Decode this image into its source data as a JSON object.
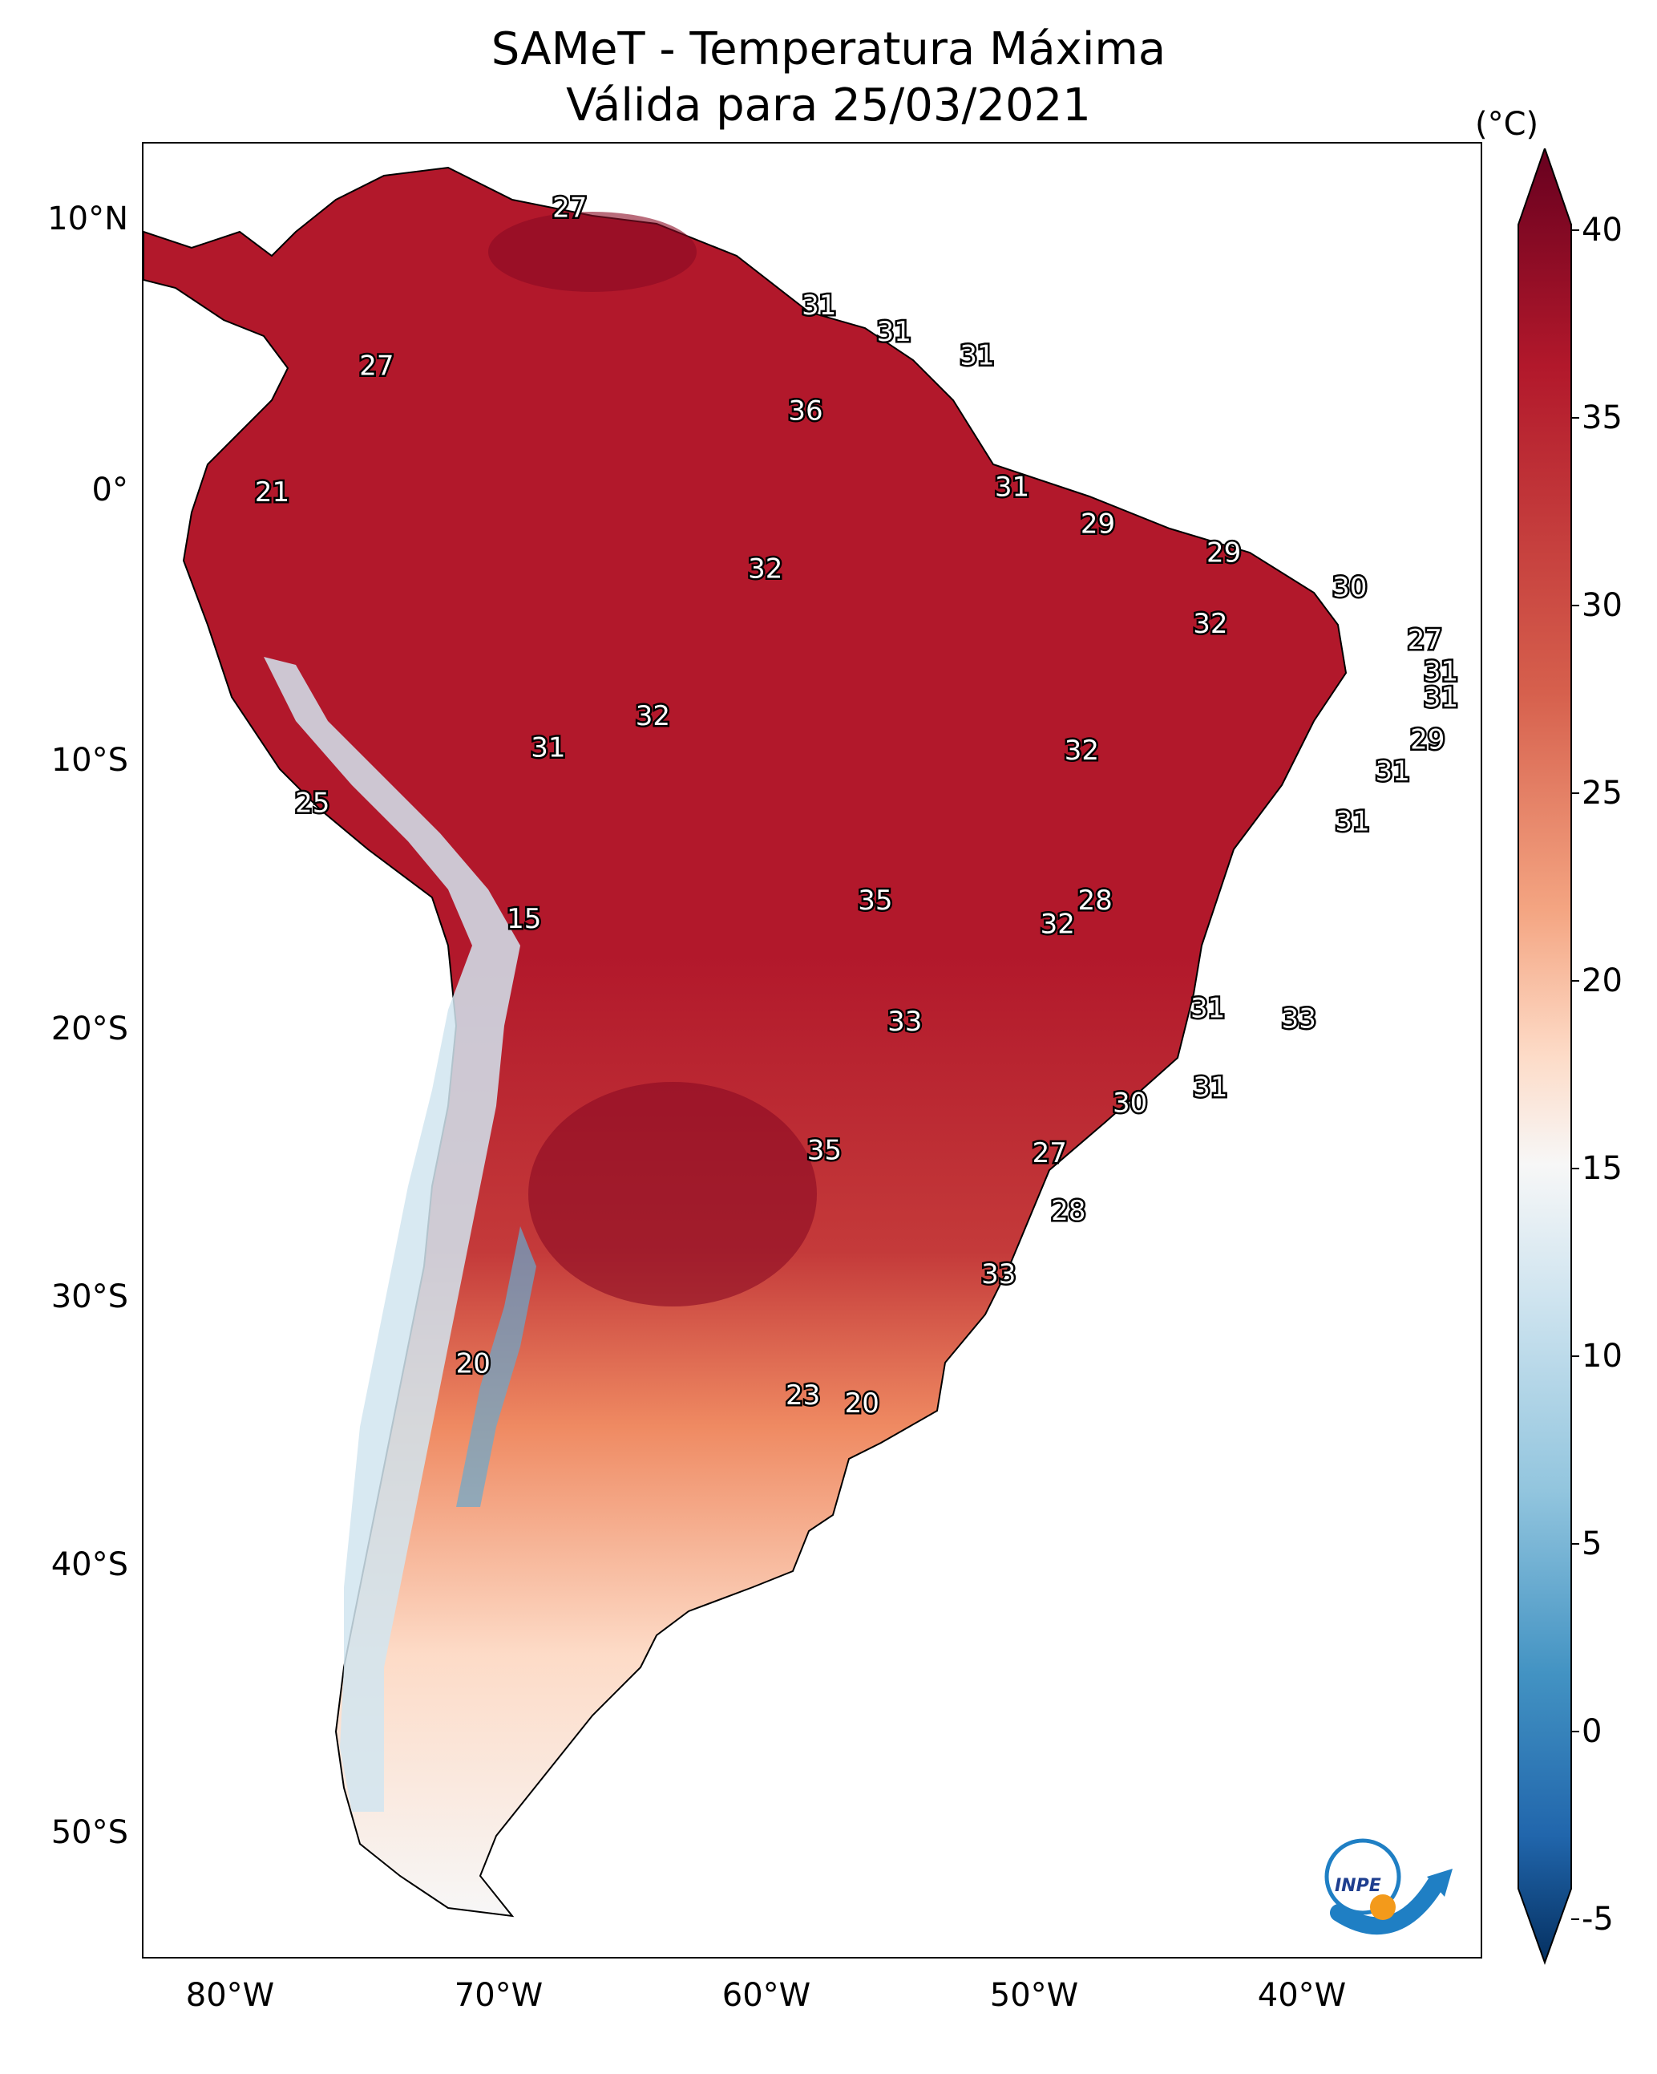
{
  "title": {
    "line1": "SAMeT - Temperatura Máxima",
    "line2": "Válida para 25/03/2021"
  },
  "map": {
    "variable": "Temperatura Máxima",
    "lon_range": [
      -83,
      -33
    ],
    "lat_range": [
      13,
      -56
    ],
    "lat_ticks": [
      {
        "value": 10,
        "label": "10°N"
      },
      {
        "value": 0,
        "label": "0°"
      },
      {
        "value": -10,
        "label": "10°S"
      },
      {
        "value": -20,
        "label": "20°S"
      },
      {
        "value": -30,
        "label": "30°S"
      },
      {
        "value": -40,
        "label": "40°S"
      },
      {
        "value": -50,
        "label": "50°S"
      }
    ],
    "lon_ticks": [
      {
        "value": -80,
        "label": "80°W"
      },
      {
        "value": -70,
        "label": "70°W"
      },
      {
        "value": -60,
        "label": "60°W"
      },
      {
        "value": -50,
        "label": "50°W"
      },
      {
        "value": -40,
        "label": "40°W"
      }
    ],
    "point_values": [
      {
        "lon": -67.1,
        "lat": 10.5,
        "value": "27"
      },
      {
        "lon": -74.3,
        "lat": 4.5,
        "value": "27"
      },
      {
        "lon": -57.8,
        "lat": 6.8,
        "value": "31"
      },
      {
        "lon": -55.0,
        "lat": 5.8,
        "value": "31"
      },
      {
        "lon": -51.9,
        "lat": 4.9,
        "value": "31"
      },
      {
        "lon": -58.3,
        "lat": 2.8,
        "value": "36"
      },
      {
        "lon": -78.2,
        "lat": -0.3,
        "value": "21"
      },
      {
        "lon": -50.6,
        "lat": -0.1,
        "value": "31"
      },
      {
        "lon": -47.4,
        "lat": -1.5,
        "value": "29"
      },
      {
        "lon": -42.7,
        "lat": -2.6,
        "value": "29"
      },
      {
        "lon": -59.8,
        "lat": -3.2,
        "value": "32"
      },
      {
        "lon": -38.0,
        "lat": -3.9,
        "value": "30"
      },
      {
        "lon": -43.2,
        "lat": -5.3,
        "value": "32"
      },
      {
        "lon": -35.2,
        "lat": -5.9,
        "value": "27"
      },
      {
        "lon": -34.6,
        "lat": -7.1,
        "value": "31"
      },
      {
        "lon": -34.6,
        "lat": -8.1,
        "value": "31"
      },
      {
        "lon": -64.0,
        "lat": -8.8,
        "value": "32"
      },
      {
        "lon": -67.9,
        "lat": -10.0,
        "value": "31"
      },
      {
        "lon": -48.0,
        "lat": -10.1,
        "value": "32"
      },
      {
        "lon": -35.1,
        "lat": -9.7,
        "value": "29"
      },
      {
        "lon": -36.4,
        "lat": -10.9,
        "value": "31"
      },
      {
        "lon": -76.7,
        "lat": -12.1,
        "value": "25"
      },
      {
        "lon": -37.9,
        "lat": -12.8,
        "value": "31"
      },
      {
        "lon": -55.7,
        "lat": -15.8,
        "value": "35"
      },
      {
        "lon": -47.5,
        "lat": -15.8,
        "value": "28"
      },
      {
        "lon": -48.9,
        "lat": -16.7,
        "value": "32"
      },
      {
        "lon": -68.8,
        "lat": -16.5,
        "value": "15"
      },
      {
        "lon": -43.3,
        "lat": -19.9,
        "value": "31"
      },
      {
        "lon": -54.6,
        "lat": -20.4,
        "value": "33"
      },
      {
        "lon": -39.9,
        "lat": -20.3,
        "value": "33"
      },
      {
        "lon": -43.2,
        "lat": -22.9,
        "value": "31"
      },
      {
        "lon": -46.2,
        "lat": -23.5,
        "value": "30"
      },
      {
        "lon": -57.6,
        "lat": -25.3,
        "value": "35"
      },
      {
        "lon": -49.2,
        "lat": -25.4,
        "value": "27"
      },
      {
        "lon": -48.5,
        "lat": -27.6,
        "value": "28"
      },
      {
        "lon": -51.1,
        "lat": -30.0,
        "value": "33"
      },
      {
        "lon": -70.7,
        "lat": -33.4,
        "value": "20"
      },
      {
        "lon": -58.4,
        "lat": -34.6,
        "value": "23"
      },
      {
        "lon": -56.2,
        "lat": -34.9,
        "value": "20"
      }
    ]
  },
  "colorbar": {
    "unit": "(°C)",
    "min": -5,
    "max": 40,
    "ticks": [
      {
        "value": 40,
        "label": "40"
      },
      {
        "value": 35,
        "label": "35"
      },
      {
        "value": 30,
        "label": "30"
      },
      {
        "value": 25,
        "label": "25"
      },
      {
        "value": 20,
        "label": "20"
      },
      {
        "value": 15,
        "label": "15"
      },
      {
        "value": 10,
        "label": "10"
      },
      {
        "value": 5,
        "label": "5"
      },
      {
        "value": 0,
        "label": "0"
      },
      {
        "value": -5,
        "label": "-5"
      }
    ],
    "colors": {
      "top": "#67001f",
      "red": "#b2182b",
      "lightred": "#ef8a62",
      "peach": "#fddbc7",
      "white": "#f7f7f7",
      "lightblue": "#d1e5f0",
      "blue": "#67a9cf",
      "darkblue": "#2166ac",
      "bottom": "#053061"
    }
  },
  "logo": {
    "text": "INPE",
    "colors": {
      "blue": "#1f7fc4",
      "orange": "#f39a1b"
    }
  }
}
